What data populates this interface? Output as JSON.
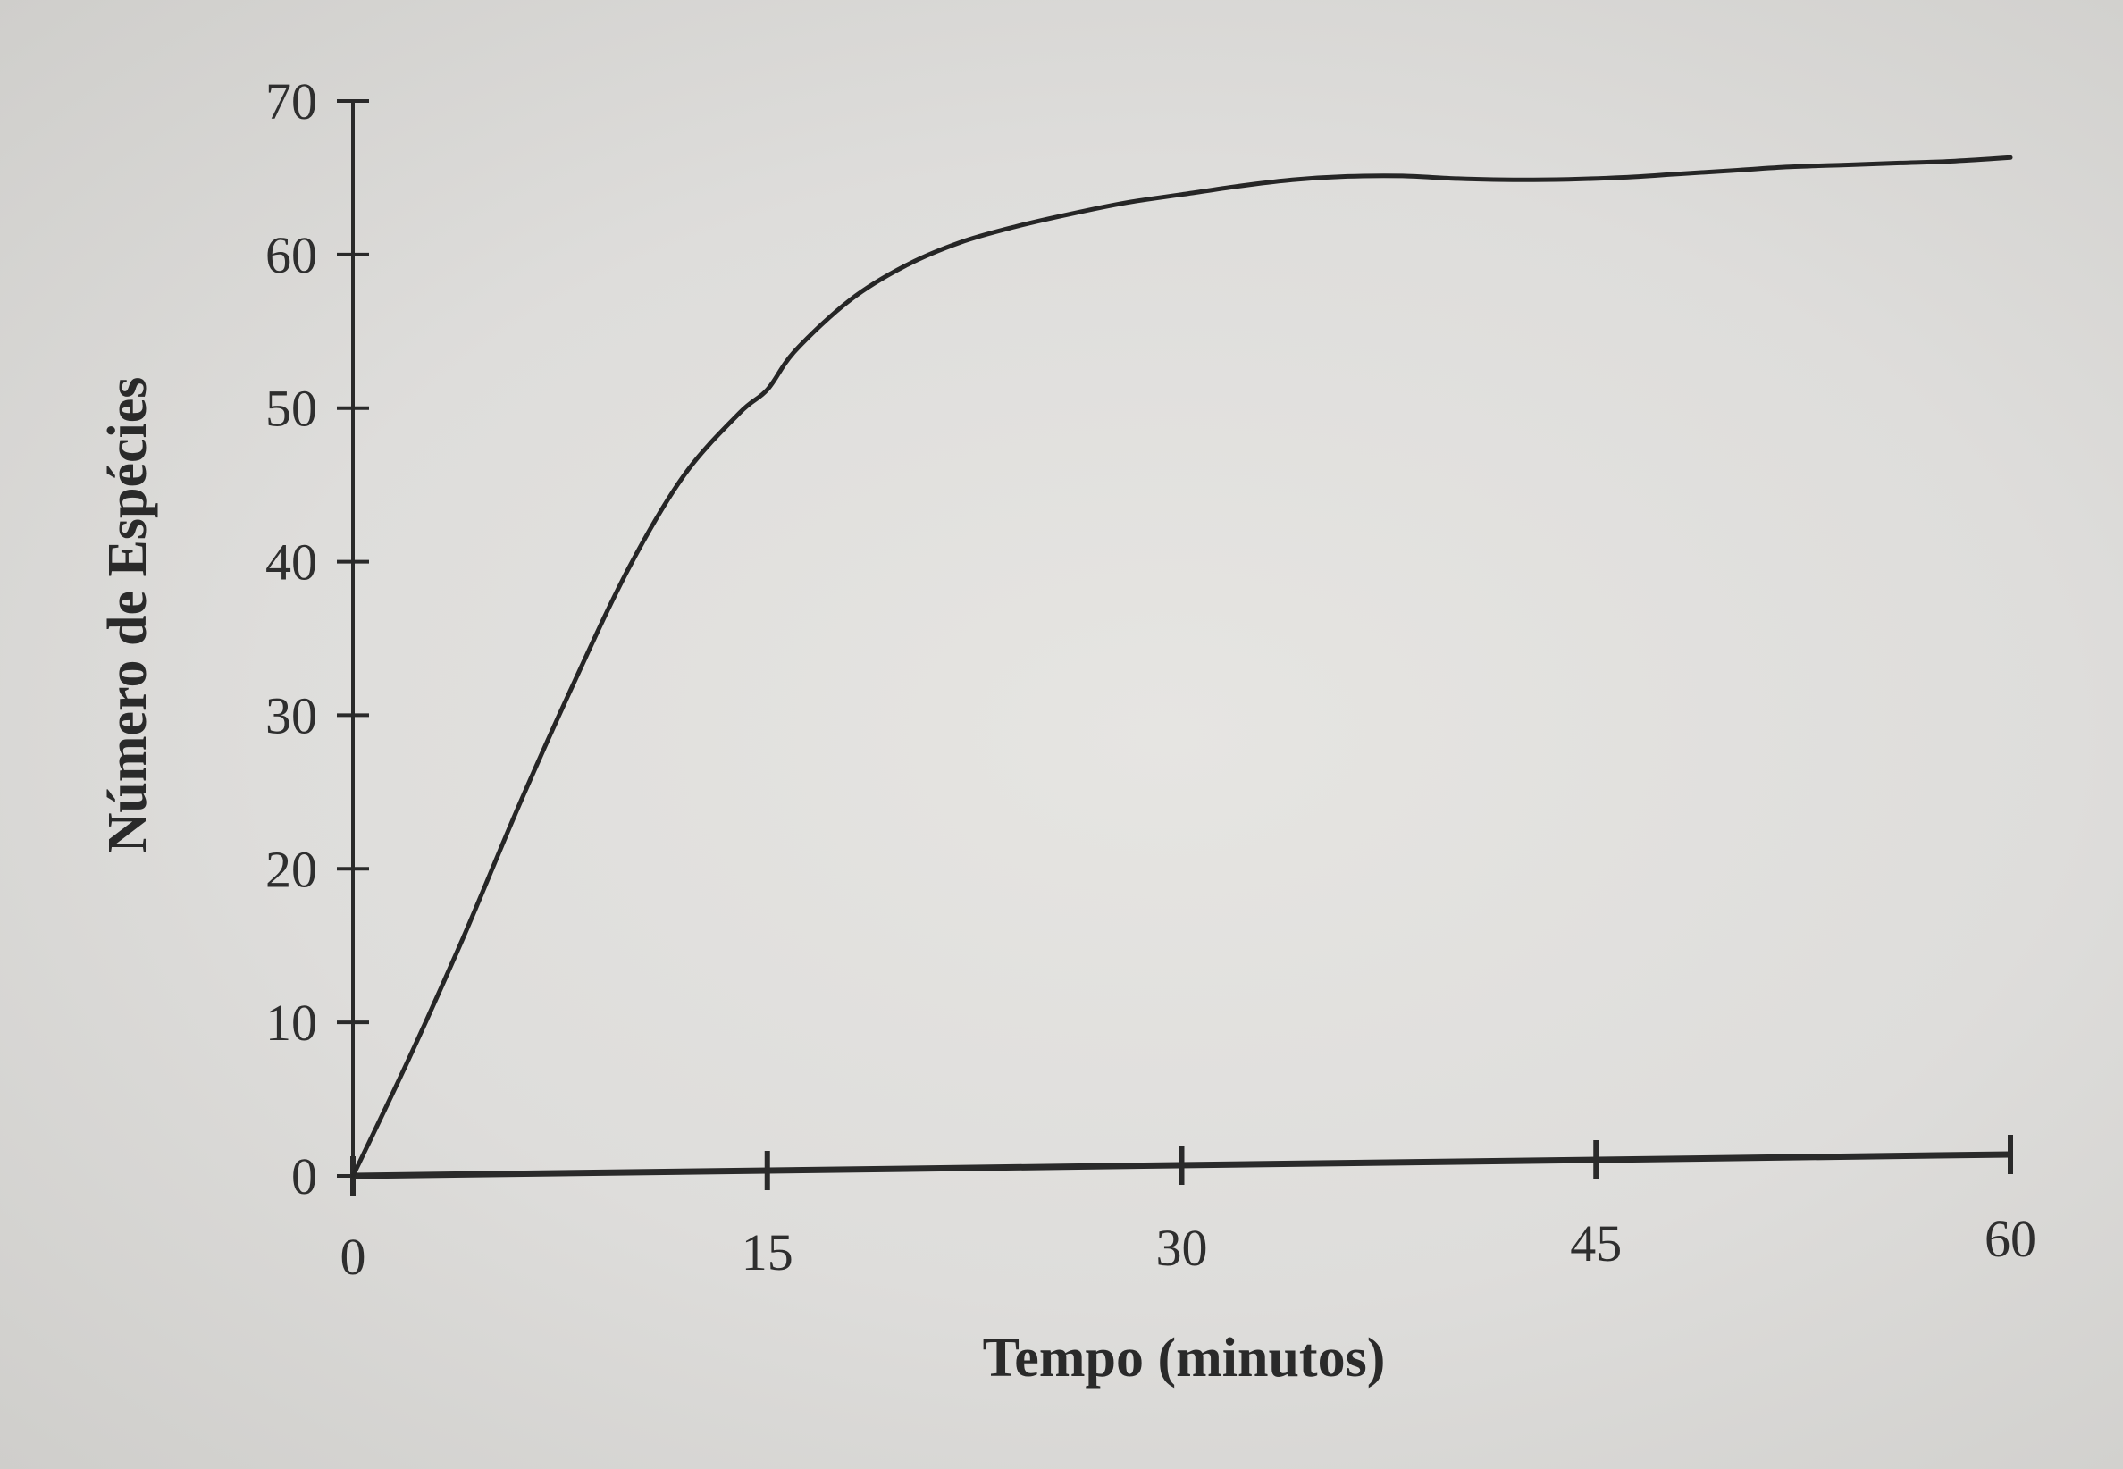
{
  "chart_data": {
    "type": "line",
    "title": "",
    "xlabel": "Tempo (minutos)",
    "ylabel": "Número de Espécies",
    "xlim": [
      0,
      60
    ],
    "ylim": [
      0,
      70
    ],
    "x_ticks": [
      "0",
      "15",
      "30",
      "45",
      "60"
    ],
    "y_ticks": [
      "0",
      "10",
      "20",
      "30",
      "40",
      "50",
      "60",
      "70"
    ],
    "grid": false,
    "legend": "none",
    "series": [
      {
        "x": [
          0,
          2,
          4,
          6,
          8,
          10,
          12,
          14,
          15,
          16,
          18,
          20,
          22,
          24,
          26,
          28,
          30,
          32,
          34,
          36,
          38,
          40,
          42,
          44,
          46,
          48,
          50,
          52,
          54,
          56,
          58,
          60
        ],
        "y": [
          0,
          7.5,
          15.5,
          24,
          32,
          39.5,
          45.5,
          49.5,
          51,
          53.5,
          56.8,
          59,
          60.5,
          61.5,
          62.3,
          63,
          63.5,
          64,
          64.4,
          64.6,
          64.6,
          64.4,
          64.3,
          64.3,
          64.4,
          64.6,
          64.8,
          65,
          65.1,
          65.2,
          65.3,
          65.5
        ],
        "color": "#262626"
      }
    ]
  }
}
